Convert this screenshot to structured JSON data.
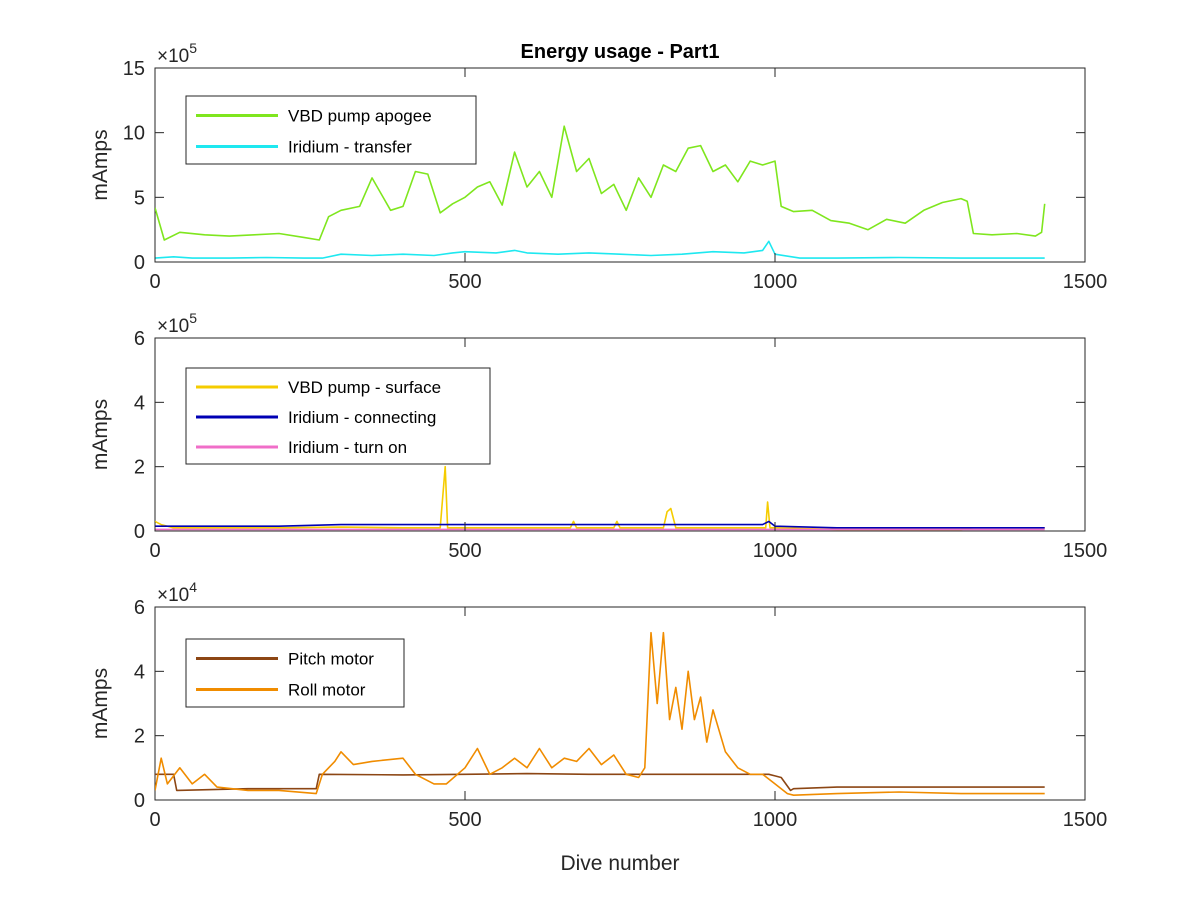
{
  "chart_data": [
    {
      "type": "line",
      "title": "Energy usage - Part1",
      "xlabel": "",
      "ylabel": "mAmps",
      "xlim": [
        0,
        1500
      ],
      "ylim": [
        0,
        15
      ],
      "y_multiplier": "×10",
      "y_exponent": "5",
      "x_ticks": [
        "0",
        "500",
        "1000",
        "1500"
      ],
      "y_ticks": [
        "0",
        "5",
        "10",
        "15"
      ],
      "grid": false,
      "legend_position": "top-left",
      "series": [
        {
          "name": "VBD pump apogee",
          "color": "#7fe61e",
          "x": [
            0,
            15,
            40,
            80,
            120,
            160,
            200,
            240,
            265,
            280,
            300,
            330,
            350,
            380,
            400,
            420,
            440,
            460,
            480,
            500,
            520,
            540,
            560,
            580,
            600,
            620,
            640,
            660,
            680,
            700,
            720,
            740,
            760,
            780,
            800,
            820,
            840,
            860,
            880,
            900,
            920,
            940,
            960,
            980,
            1000,
            1010,
            1030,
            1060,
            1090,
            1120,
            1150,
            1180,
            1210,
            1240,
            1270,
            1300,
            1310,
            1320,
            1350,
            1390,
            1420,
            1430,
            1435
          ],
          "y": [
            4.2,
            1.7,
            2.3,
            2.1,
            2.0,
            2.1,
            2.2,
            1.9,
            1.7,
            3.5,
            4.0,
            4.3,
            6.5,
            4.0,
            4.3,
            7.0,
            6.8,
            3.8,
            4.5,
            5.0,
            5.8,
            6.2,
            4.4,
            8.5,
            5.8,
            7.0,
            5.0,
            10.5,
            7.0,
            8.0,
            5.3,
            6.0,
            4.0,
            6.5,
            5.0,
            7.5,
            7.0,
            8.8,
            9.0,
            7.0,
            7.5,
            6.2,
            7.8,
            7.5,
            7.8,
            4.3,
            3.9,
            4.0,
            3.2,
            3.0,
            2.5,
            3.3,
            3.0,
            4.0,
            4.6,
            4.9,
            4.7,
            2.2,
            2.1,
            2.2,
            2.0,
            2.3,
            4.5
          ]
        },
        {
          "name": "Iridium - transfer",
          "color": "#1ee8f0",
          "x": [
            0,
            30,
            60,
            120,
            180,
            240,
            270,
            300,
            350,
            400,
            450,
            480,
            500,
            550,
            580,
            600,
            650,
            700,
            750,
            800,
            850,
            900,
            950,
            980,
            990,
            1000,
            1040,
            1100,
            1200,
            1300,
            1400,
            1435
          ],
          "y": [
            0.3,
            0.4,
            0.3,
            0.3,
            0.35,
            0.3,
            0.3,
            0.6,
            0.5,
            0.6,
            0.5,
            0.7,
            0.8,
            0.7,
            0.9,
            0.7,
            0.6,
            0.7,
            0.6,
            0.5,
            0.6,
            0.8,
            0.7,
            0.9,
            1.6,
            0.6,
            0.3,
            0.3,
            0.35,
            0.3,
            0.3,
            0.3
          ]
        }
      ]
    },
    {
      "type": "line",
      "title": "",
      "xlabel": "",
      "ylabel": "mAmps",
      "xlim": [
        0,
        1500
      ],
      "ylim": [
        0,
        6
      ],
      "y_multiplier": "×10",
      "y_exponent": "5",
      "x_ticks": [
        "0",
        "500",
        "1000",
        "1500"
      ],
      "y_ticks": [
        "0",
        "2",
        "4",
        "6"
      ],
      "grid": false,
      "legend_position": "top-left",
      "series": [
        {
          "name": "VBD pump - surface",
          "color": "#f5cc00",
          "x": [
            0,
            10,
            30,
            100,
            200,
            300,
            400,
            460,
            468,
            472,
            480,
            550,
            600,
            670,
            675,
            680,
            740,
            745,
            750,
            820,
            826,
            832,
            840,
            900,
            985,
            988,
            992,
            1000,
            1100,
            1200,
            1300,
            1320,
            1400,
            1435
          ],
          "y": [
            0.3,
            0.2,
            0.1,
            0.1,
            0.1,
            0.12,
            0.1,
            0.1,
            2.0,
            0.1,
            0.1,
            0.1,
            0.1,
            0.1,
            0.3,
            0.1,
            0.1,
            0.3,
            0.1,
            0.1,
            0.6,
            0.7,
            0.1,
            0.1,
            0.1,
            0.9,
            0.1,
            0.1,
            0.05,
            0.05,
            0.05,
            0.1,
            0.1,
            0.1
          ]
        },
        {
          "name": "Iridium - connecting",
          "color": "#0000b4",
          "x": [
            0,
            100,
            200,
            300,
            400,
            500,
            600,
            700,
            800,
            900,
            980,
            990,
            1000,
            1100,
            1200,
            1300,
            1400,
            1435
          ],
          "y": [
            0.15,
            0.15,
            0.15,
            0.2,
            0.2,
            0.2,
            0.2,
            0.2,
            0.2,
            0.2,
            0.2,
            0.3,
            0.15,
            0.1,
            0.1,
            0.1,
            0.1,
            0.1
          ]
        },
        {
          "name": "Iridium - turn on",
          "color": "#f06ec8",
          "x": [
            0,
            500,
            1000,
            1435
          ],
          "y": [
            0.05,
            0.05,
            0.05,
            0.05
          ]
        }
      ]
    },
    {
      "type": "line",
      "title": "",
      "xlabel": "Dive number",
      "ylabel": "mAmps",
      "xlim": [
        0,
        1500
      ],
      "ylim": [
        0,
        6
      ],
      "y_multiplier": "×10",
      "y_exponent": "4",
      "x_ticks": [
        "0",
        "500",
        "1000",
        "1500"
      ],
      "y_ticks": [
        "0",
        "2",
        "4",
        "6"
      ],
      "grid": false,
      "legend_position": "top-left",
      "series": [
        {
          "name": "Pitch motor",
          "color": "#8c4614",
          "x": [
            0,
            30,
            35,
            150,
            260,
            265,
            400,
            500,
            600,
            700,
            800,
            900,
            990,
            1000,
            1010,
            1025,
            1030,
            1100,
            1200,
            1300,
            1400,
            1435
          ],
          "y": [
            0.8,
            0.8,
            0.3,
            0.35,
            0.35,
            0.8,
            0.78,
            0.8,
            0.82,
            0.8,
            0.8,
            0.8,
            0.8,
            0.75,
            0.7,
            0.3,
            0.35,
            0.4,
            0.4,
            0.4,
            0.4,
            0.4
          ]
        },
        {
          "name": "Roll motor",
          "color": "#f08c00",
          "x": [
            0,
            10,
            20,
            40,
            60,
            80,
            100,
            150,
            200,
            260,
            270,
            290,
            300,
            320,
            350,
            400,
            420,
            450,
            470,
            500,
            520,
            540,
            560,
            580,
            600,
            620,
            640,
            660,
            680,
            700,
            720,
            740,
            760,
            780,
            790,
            800,
            810,
            820,
            830,
            840,
            850,
            860,
            870,
            880,
            890,
            900,
            920,
            940,
            960,
            980,
            1000,
            1020,
            1030,
            1100,
            1200,
            1300,
            1400,
            1435
          ],
          "y": [
            0.3,
            1.3,
            0.5,
            1.0,
            0.5,
            0.8,
            0.4,
            0.3,
            0.3,
            0.2,
            0.8,
            1.2,
            1.5,
            1.1,
            1.2,
            1.3,
            0.8,
            0.5,
            0.5,
            1.0,
            1.6,
            0.8,
            1.0,
            1.3,
            1.0,
            1.6,
            1.0,
            1.3,
            1.2,
            1.6,
            1.1,
            1.4,
            0.8,
            0.7,
            1.0,
            5.2,
            3.0,
            5.2,
            2.5,
            3.5,
            2.2,
            4.0,
            2.5,
            3.2,
            1.8,
            2.8,
            1.5,
            1.0,
            0.8,
            0.8,
            0.5,
            0.2,
            0.15,
            0.2,
            0.25,
            0.2,
            0.2,
            0.2
          ]
        }
      ]
    }
  ]
}
